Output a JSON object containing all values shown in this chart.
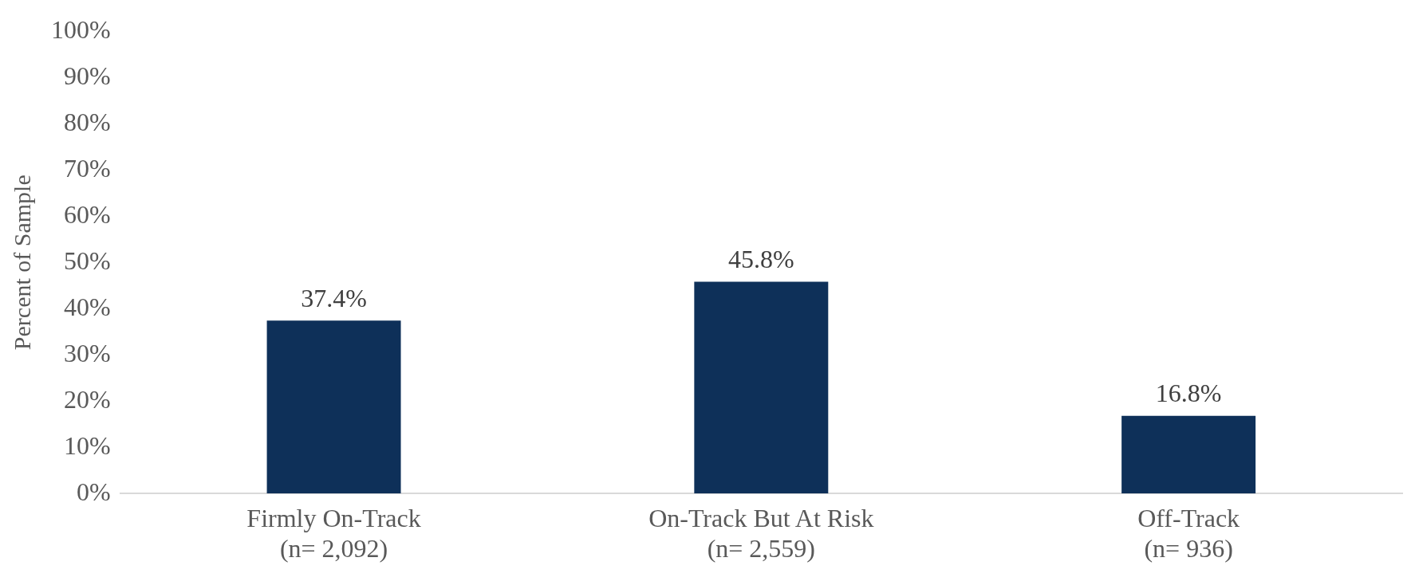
{
  "chart_data": {
    "type": "bar",
    "ylabel": "Percent of Sample",
    "categories": [
      "Firmly On-Track\n(n= 2,092)",
      "On-Track But At Risk\n(n= 2,559)",
      "Off-Track\n(n= 936)"
    ],
    "values": [
      37.4,
      45.8,
      16.8
    ],
    "value_labels": [
      "37.4%",
      "45.8%",
      "16.8%"
    ],
    "color": "#0e3059",
    "ylim": [
      0,
      100
    ],
    "yticks": [
      {
        "value": 0,
        "label": "0%"
      },
      {
        "value": 10,
        "label": "10%"
      },
      {
        "value": 20,
        "label": "20%"
      },
      {
        "value": 30,
        "label": "30%"
      },
      {
        "value": 40,
        "label": "40%"
      },
      {
        "value": 50,
        "label": "50%"
      },
      {
        "value": 60,
        "label": "60%"
      },
      {
        "value": 70,
        "label": "70%"
      },
      {
        "value": 80,
        "label": "80%"
      },
      {
        "value": 90,
        "label": "90%"
      },
      {
        "value": 100,
        "label": "100%"
      }
    ],
    "grid": false,
    "legend": false
  }
}
